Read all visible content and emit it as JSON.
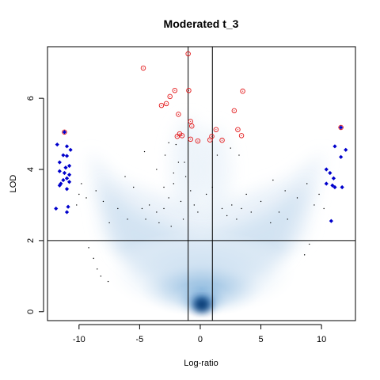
{
  "chart_data": {
    "type": "scatter",
    "title": "Moderated t_3",
    "xlabel": "Log-ratio",
    "ylabel": "LOD",
    "xlim": [
      -12.6,
      12.8
    ],
    "ylim": [
      -0.25,
      7.45
    ],
    "xticks": [
      -10,
      -5,
      0,
      5,
      10
    ],
    "yticks": [
      0,
      2,
      4,
      6
    ],
    "grid": false,
    "density_background": "smoothed point density (blue)",
    "reference_lines": {
      "vertical": [
        -1,
        1
      ],
      "horizontal": [
        2
      ]
    },
    "colors": {
      "density_light": "#e9f1fa",
      "density_mid": "#9ec3e2",
      "density_dark": "#084a91",
      "highlight_ring": "#e31a1c",
      "highlight_diamond": "#0000cc",
      "small_dot": "#000000",
      "ref_line": "#000000"
    },
    "series": [
      {
        "marker": "open-circle-red",
        "points": [
          [
            -1.0,
            7.25
          ],
          [
            -4.7,
            6.85
          ],
          [
            -2.1,
            6.22
          ],
          [
            -0.95,
            6.22
          ],
          [
            3.5,
            6.2
          ],
          [
            -2.5,
            6.05
          ],
          [
            -2.8,
            5.85
          ],
          [
            -3.2,
            5.8
          ],
          [
            2.8,
            5.65
          ],
          [
            -1.8,
            5.55
          ],
          [
            -0.8,
            5.35
          ],
          [
            -0.7,
            5.22
          ],
          [
            1.3,
            5.12
          ],
          [
            3.1,
            5.12
          ],
          [
            -1.7,
            5.0
          ],
          [
            -1.5,
            4.95
          ],
          [
            -1.9,
            4.93
          ],
          [
            0.95,
            4.93
          ],
          [
            3.4,
            4.95
          ],
          [
            -0.8,
            4.85
          ],
          [
            0.8,
            4.83
          ],
          [
            1.8,
            4.82
          ],
          [
            -0.2,
            4.8
          ],
          [
            11.6,
            5.18
          ],
          [
            -11.2,
            5.05
          ]
        ]
      },
      {
        "marker": "filled-diamond-blue",
        "points": [
          [
            -11.2,
            5.05
          ],
          [
            -11.8,
            4.7
          ],
          [
            -11.0,
            4.65
          ],
          [
            -10.7,
            4.55
          ],
          [
            -11.3,
            4.4
          ],
          [
            -11.0,
            4.38
          ],
          [
            -11.6,
            4.2
          ],
          [
            -10.8,
            4.1
          ],
          [
            -11.1,
            4.05
          ],
          [
            -11.6,
            3.95
          ],
          [
            -11.2,
            3.9
          ],
          [
            -10.8,
            3.85
          ],
          [
            -11.0,
            3.75
          ],
          [
            -11.3,
            3.7
          ],
          [
            -10.8,
            3.65
          ],
          [
            -11.5,
            3.6
          ],
          [
            -11.6,
            3.55
          ],
          [
            -11.0,
            3.45
          ],
          [
            -11.9,
            2.9
          ],
          [
            -10.9,
            2.95
          ],
          [
            -11.0,
            2.8
          ],
          [
            11.6,
            5.18
          ],
          [
            11.1,
            4.65
          ],
          [
            12.0,
            4.55
          ],
          [
            11.6,
            4.35
          ],
          [
            10.4,
            4.0
          ],
          [
            10.7,
            3.9
          ],
          [
            11.0,
            3.75
          ],
          [
            10.4,
            3.6
          ],
          [
            10.9,
            3.55
          ],
          [
            11.1,
            3.5
          ],
          [
            11.7,
            3.5
          ],
          [
            10.8,
            2.55
          ]
        ]
      },
      {
        "marker": "small-dot-black",
        "points": [
          [
            -10.2,
            3.0
          ],
          [
            -10.0,
            3.3
          ],
          [
            -9.8,
            3.6
          ],
          [
            -9.4,
            3.2
          ],
          [
            -8.6,
            3.4
          ],
          [
            -8.0,
            3.1
          ],
          [
            -7.5,
            2.5
          ],
          [
            -6.8,
            2.9
          ],
          [
            -6.0,
            2.6
          ],
          [
            -4.8,
            2.9
          ],
          [
            -4.5,
            2.6
          ],
          [
            -4.2,
            3.0
          ],
          [
            -3.6,
            2.8
          ],
          [
            -3.4,
            2.5
          ],
          [
            -3.0,
            2.9
          ],
          [
            -2.6,
            3.2
          ],
          [
            -2.4,
            2.4
          ],
          [
            -2.2,
            3.6
          ],
          [
            -2.0,
            4.7
          ],
          [
            -1.8,
            4.2
          ],
          [
            -1.6,
            3.1
          ],
          [
            -1.4,
            2.6
          ],
          [
            -1.2,
            3.8
          ],
          [
            -0.8,
            3.4
          ],
          [
            -0.5,
            3.0
          ],
          [
            -0.2,
            2.8
          ],
          [
            0.5,
            3.3
          ],
          [
            1.0,
            3.5
          ],
          [
            1.4,
            4.4
          ],
          [
            1.8,
            2.9
          ],
          [
            2.2,
            2.7
          ],
          [
            2.6,
            3.0
          ],
          [
            3.0,
            2.6
          ],
          [
            3.4,
            2.9
          ],
          [
            3.8,
            3.3
          ],
          [
            4.2,
            2.8
          ],
          [
            5.0,
            3.1
          ],
          [
            5.8,
            2.5
          ],
          [
            6.5,
            2.8
          ],
          [
            7.2,
            2.6
          ],
          [
            8.0,
            3.2
          ],
          [
            8.8,
            3.6
          ],
          [
            9.4,
            3.0
          ],
          [
            9.8,
            3.3
          ],
          [
            10.2,
            2.9
          ],
          [
            -8.5,
            1.2
          ],
          [
            -8.2,
            1.0
          ],
          [
            -7.6,
            0.85
          ],
          [
            -8.8,
            1.5
          ],
          [
            -9.2,
            1.8
          ],
          [
            9.0,
            1.9
          ],
          [
            8.6,
            1.6
          ],
          [
            -4.6,
            4.5
          ],
          [
            -2.9,
            4.4
          ],
          [
            -3.6,
            4.0
          ],
          [
            -1.3,
            4.2
          ],
          [
            -2.6,
            4.75
          ],
          [
            2.5,
            4.6
          ],
          [
            3.2,
            4.4
          ],
          [
            -6.2,
            3.8
          ],
          [
            -5.5,
            3.5
          ],
          [
            6.0,
            3.7
          ],
          [
            7.0,
            3.4
          ],
          [
            -2.2,
            3.9
          ],
          [
            -3.0,
            3.5
          ]
        ]
      }
    ]
  }
}
